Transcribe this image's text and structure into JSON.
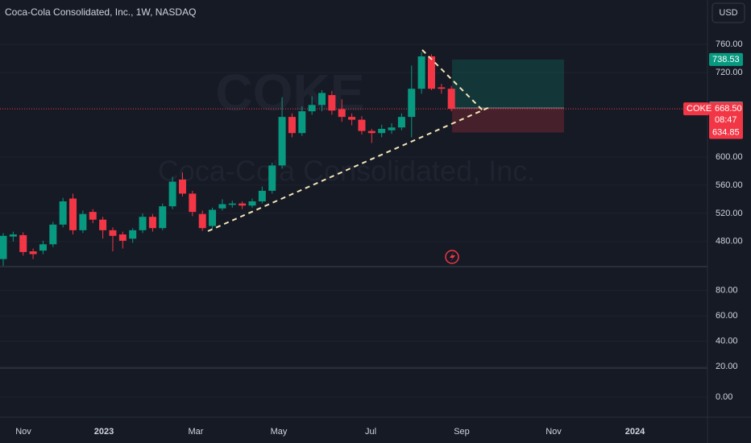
{
  "header": {
    "title": "Coca-Cola Consolidated, Inc., 1W, NASDAQ",
    "currency": "USD"
  },
  "chart_data": [
    {
      "type": "candlestick",
      "symbol": "COKE",
      "watermark": "Coca-Cola Consolidated, Inc.",
      "up_color": "#089981",
      "down_color": "#f23645",
      "open": [
        455,
        487,
        489,
        466,
        467,
        476,
        504,
        541,
        496,
        522,
        511,
        496,
        490,
        484,
        496,
        515,
        499,
        530,
        568,
        548,
        519,
        502,
        527,
        532,
        534,
        531,
        537,
        552,
        588,
        657,
        634,
        665,
        674,
        688,
        668,
        657,
        653,
        637,
        634,
        638,
        642,
        657,
        697,
        743,
        699,
        697
      ],
      "high": [
        492,
        494,
        493,
        470,
        481,
        508,
        542,
        548,
        524,
        526,
        515,
        500,
        494,
        499,
        520,
        519,
        534,
        572,
        578,
        552,
        524,
        528,
        540,
        538,
        537,
        541,
        558,
        592,
        685,
        662,
        672,
        686,
        695,
        694,
        682,
        662,
        658,
        640,
        646,
        648,
        662,
        730,
        749,
        746,
        704,
        701
      ],
      "low": [
        444,
        480,
        460,
        455,
        462,
        472,
        500,
        490,
        492,
        506,
        484,
        466,
        470,
        478,
        492,
        494,
        496,
        526,
        544,
        516,
        495,
        498,
        524,
        528,
        526,
        528,
        534,
        548,
        584,
        628,
        630,
        660,
        665,
        660,
        650,
        645,
        632,
        620,
        628,
        633,
        638,
        628,
        690,
        695,
        690,
        665
      ],
      "close": [
        488,
        490,
        465,
        462,
        476,
        504,
        537,
        496,
        519,
        511,
        496,
        488,
        481,
        496,
        515,
        499,
        530,
        565,
        548,
        522,
        499,
        525,
        533,
        534,
        531,
        537,
        552,
        588,
        657,
        634,
        665,
        674,
        691,
        666,
        657,
        653,
        637,
        634,
        640,
        642,
        657,
        697,
        743,
        697,
        697,
        668.5
      ],
      "ylim": [
        444.3,
        823.1
      ],
      "yticks": [
        {
          "value": 480,
          "label": "480.00"
        },
        {
          "value": 520,
          "label": "520.00"
        },
        {
          "value": 560,
          "label": "560.00"
        },
        {
          "value": 600,
          "label": "600.00"
        },
        {
          "value": 720,
          "label": "720.00"
        },
        {
          "value": 760,
          "label": "760.00"
        }
      ],
      "xticks": [
        "Nov",
        "2023",
        "Mar",
        "May",
        "Jul",
        "Sep",
        "Nov",
        "2024"
      ],
      "last_price": {
        "value": 668.5,
        "label": "668.50"
      },
      "countdown": "08:47",
      "position": {
        "target": 738.53,
        "entry": 669.69,
        "stop": 634.85
      }
    },
    {
      "type": "indicator",
      "ylim": [
        18.7,
        98.9
      ],
      "yticks": [
        {
          "value": 20,
          "label": "20.00"
        },
        {
          "value": 40,
          "label": "40.00"
        },
        {
          "value": 60,
          "label": "60.00"
        },
        {
          "value": 80,
          "label": "80.00"
        }
      ]
    },
    {
      "type": "indicator",
      "ylim": [
        -15.8,
        22.7
      ],
      "yticks": [
        {
          "value": 0,
          "label": "0.00"
        }
      ]
    }
  ]
}
